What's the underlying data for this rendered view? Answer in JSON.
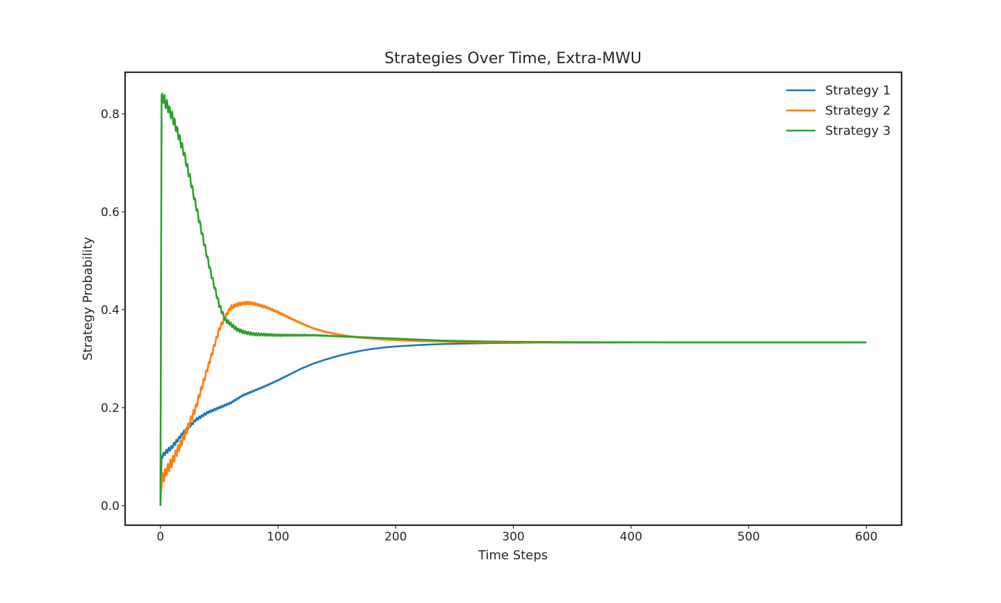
{
  "chart_data": {
    "type": "line",
    "title": "Strategies Over Time, Extra-MWU",
    "xlabel": "Time Steps",
    "ylabel": "Strategy Probability",
    "xlim": [
      -30,
      630
    ],
    "ylim": [
      -0.04,
      0.885
    ],
    "xticks": [
      0,
      100,
      200,
      300,
      400,
      500,
      600
    ],
    "yticks": [
      0.0,
      0.2,
      0.4,
      0.6,
      0.8
    ],
    "grid": false,
    "legend": "top-right",
    "series": [
      {
        "name": "Strategy 1",
        "color": "#1f77b4",
        "x": [
          0,
          1,
          5,
          10,
          15,
          20,
          30,
          40,
          50,
          60,
          70,
          80,
          90,
          100,
          110,
          120,
          130,
          140,
          150,
          160,
          170,
          180,
          190,
          200,
          220,
          240,
          260,
          280,
          300,
          320,
          340,
          360,
          380,
          400,
          450,
          500,
          550,
          600
        ],
        "y": [
          0.0,
          0.1,
          0.11,
          0.12,
          0.135,
          0.15,
          0.175,
          0.19,
          0.2,
          0.21,
          0.225,
          0.235,
          0.245,
          0.256,
          0.268,
          0.28,
          0.29,
          0.298,
          0.305,
          0.311,
          0.316,
          0.32,
          0.323,
          0.325,
          0.328,
          0.33,
          0.331,
          0.332,
          0.3325,
          0.333,
          0.333,
          0.333,
          0.333,
          0.3333,
          0.3333,
          0.3333,
          0.3333,
          0.3333
        ],
        "oscillation": 0.005
      },
      {
        "name": "Strategy 2",
        "color": "#ff7f0e",
        "x": [
          0,
          1,
          5,
          10,
          15,
          20,
          25,
          30,
          35,
          40,
          45,
          50,
          55,
          60,
          65,
          70,
          75,
          80,
          90,
          100,
          110,
          120,
          130,
          140,
          150,
          160,
          170,
          180,
          190,
          200,
          220,
          240,
          260,
          280,
          300,
          350,
          400,
          450,
          500,
          550,
          600
        ],
        "y": [
          0.0,
          0.05,
          0.07,
          0.09,
          0.115,
          0.14,
          0.17,
          0.2,
          0.24,
          0.28,
          0.32,
          0.36,
          0.385,
          0.405,
          0.41,
          0.413,
          0.414,
          0.412,
          0.405,
          0.395,
          0.383,
          0.372,
          0.362,
          0.355,
          0.35,
          0.346,
          0.343,
          0.341,
          0.339,
          0.338,
          0.336,
          0.335,
          0.334,
          0.3337,
          0.3335,
          0.3334,
          0.3333,
          0.3333,
          0.3333,
          0.3333,
          0.3333
        ],
        "oscillation": 0.012
      },
      {
        "name": "Strategy 3",
        "color": "#2ca02c",
        "x": [
          0,
          1,
          2,
          3,
          5,
          10,
          15,
          20,
          25,
          30,
          35,
          40,
          45,
          50,
          55,
          60,
          65,
          70,
          75,
          80,
          90,
          100,
          110,
          120,
          130,
          140,
          150,
          160,
          170,
          180,
          190,
          200,
          220,
          240,
          260,
          280,
          300,
          350,
          400,
          450,
          500,
          550,
          600
        ],
        "y": [
          0.0,
          0.83,
          0.835,
          0.83,
          0.82,
          0.795,
          0.76,
          0.72,
          0.67,
          0.615,
          0.56,
          0.505,
          0.455,
          0.41,
          0.38,
          0.37,
          0.36,
          0.355,
          0.352,
          0.35,
          0.349,
          0.348,
          0.348,
          0.348,
          0.348,
          0.347,
          0.346,
          0.345,
          0.344,
          0.343,
          0.342,
          0.341,
          0.339,
          0.337,
          0.336,
          0.335,
          0.3345,
          0.3338,
          0.3335,
          0.3334,
          0.3333,
          0.3333,
          0.3333
        ],
        "oscillation": 0.012
      }
    ]
  }
}
